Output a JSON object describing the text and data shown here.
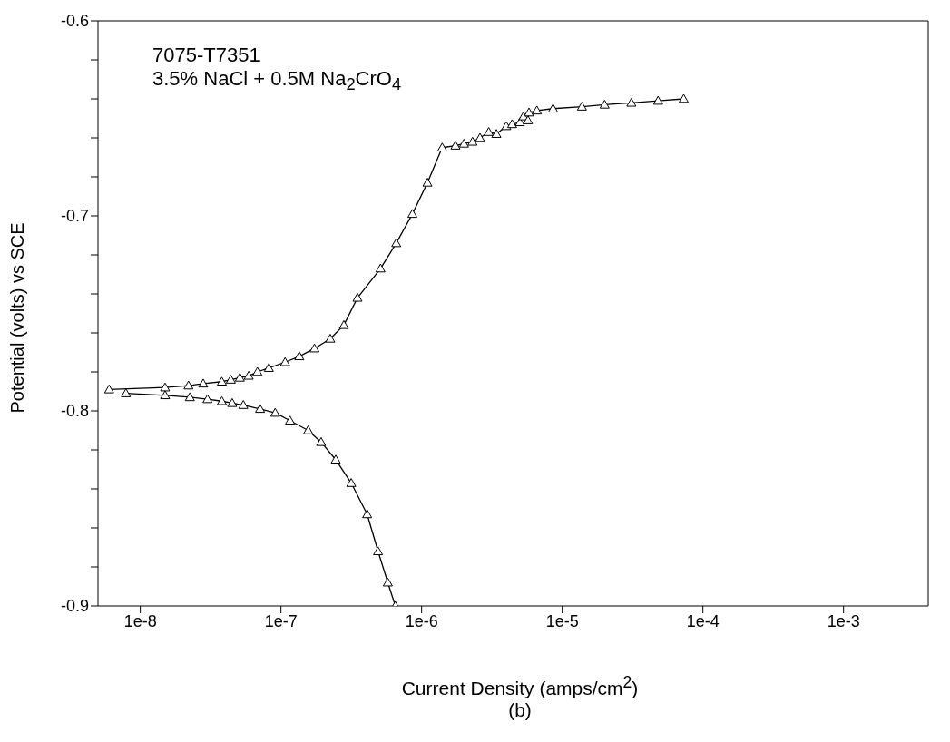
{
  "chart_data": {
    "type": "line",
    "xlabel": "Current Density (amps/cm$^{2}$)",
    "ylabel": "Potential (volts) vs SCE",
    "annotations": [
      "7075-T7351",
      "3.5% NaCl + 0.5M Na$_{2}$CrO$_{4}$",
      "(b)"
    ],
    "log": "x",
    "xlim": [
      5e-09,
      0.004
    ],
    "xticks": [
      {
        "value": 1e-08,
        "label": "1e-8"
      },
      {
        "value": 1e-07,
        "label": "1e-7"
      },
      {
        "value": 1e-06,
        "label": "1e-6"
      },
      {
        "value": 1e-05,
        "label": "1e-5"
      },
      {
        "value": 0.0001,
        "label": "1e-4"
      },
      {
        "value": 0.001,
        "label": "1e-3"
      }
    ],
    "ylim": [
      -0.9,
      -0.6
    ],
    "yticks": [
      -0.9,
      {
        "value": -0.88,
        "label": null
      },
      {
        "value": -0.86,
        "label": null
      },
      {
        "value": -0.84,
        "label": null
      },
      {
        "value": -0.82,
        "label": null
      },
      -0.8,
      {
        "value": -0.78,
        "label": null
      },
      {
        "value": -0.76,
        "label": null
      },
      {
        "value": -0.74,
        "label": null
      },
      {
        "value": -0.72,
        "label": null
      },
      -0.7,
      {
        "value": -0.68,
        "label": null
      },
      {
        "value": -0.66,
        "label": null
      },
      {
        "value": -0.64,
        "label": null
      },
      {
        "value": -0.62,
        "label": null
      },
      -0.6
    ],
    "marker": "triangle",
    "line_style": "solid",
    "series": [
      {
        "color": "#000000",
        "x": [
          6e-09,
          1.5e-08,
          2.2e-08,
          2.8e-08,
          3.8e-08,
          4.4e-08,
          5.1e-08,
          5.9e-08,
          6.8e-08,
          8.2e-08,
          1.07e-07,
          1.35e-07,
          1.73e-07,
          2.24e-07,
          2.8e-07,
          3.5e-07,
          5.1e-07,
          6.6e-07,
          8.6e-07,
          1.1e-06,
          1.4e-06,
          1.74e-06,
          2e-06,
          2.3e-06,
          2.6e-06,
          3e-06,
          3.4e-06,
          4e-06,
          4.4e-06,
          5e-06,
          5.3e-06,
          5.7e-06,
          5.8e-06,
          6.6e-06,
          8.6e-06,
          1.38e-05,
          2e-05,
          3.1e-05,
          4.8e-05,
          7.3e-05
        ],
        "values": [
          -0.789,
          -0.788,
          -0.787,
          -0.786,
          -0.785,
          -0.784,
          -0.783,
          -0.782,
          -0.78,
          -0.778,
          -0.775,
          -0.772,
          -0.768,
          -0.763,
          -0.756,
          -0.742,
          -0.727,
          -0.714,
          -0.699,
          -0.683,
          -0.665,
          -0.664,
          -0.663,
          -0.662,
          -0.66,
          -0.657,
          -0.658,
          -0.654,
          -0.653,
          -0.652,
          -0.649,
          -0.651,
          -0.647,
          -0.646,
          -0.645,
          -0.644,
          -0.643,
          -0.642,
          -0.641,
          -0.64
        ]
      },
      {
        "color": "#000000",
        "x": [
          7.9e-09,
          1.5e-08,
          2.25e-08,
          3e-08,
          3.8e-08,
          4.5e-08,
          5.4e-08,
          7.1e-08,
          9.1e-08,
          1.16e-07,
          1.56e-07,
          1.93e-07,
          2.45e-07,
          3.16e-07,
          4.1e-07,
          4.9e-07,
          5.75e-07,
          6.5e-07
        ],
        "values": [
          -0.791,
          -0.792,
          -0.793,
          -0.794,
          -0.795,
          -0.796,
          -0.797,
          -0.799,
          -0.801,
          -0.805,
          -0.81,
          -0.816,
          -0.825,
          -0.837,
          -0.853,
          -0.872,
          -0.888,
          -0.9
        ]
      }
    ]
  }
}
